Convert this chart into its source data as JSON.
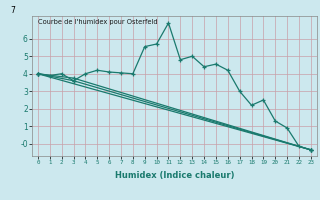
{
  "title": "Courbe de l'humidex pour Osterfeld",
  "xlabel": "Humidex (Indice chaleur)",
  "background_color": "#cce8ee",
  "grid_color": "#aaccd4",
  "line_color": "#1a7a6e",
  "xlim": [
    -0.5,
    23.5
  ],
  "ylim": [
    -0.7,
    7.3
  ],
  "yticks": [
    0,
    1,
    2,
    3,
    4,
    5,
    6
  ],
  "ytick_labels": [
    "-0",
    "1",
    "2",
    "3",
    "4",
    "5",
    "6"
  ],
  "xticks": [
    0,
    1,
    2,
    3,
    4,
    5,
    6,
    7,
    8,
    9,
    10,
    11,
    12,
    13,
    14,
    15,
    16,
    17,
    18,
    19,
    20,
    21,
    22,
    23
  ],
  "line1_x": [
    0,
    1,
    2,
    3,
    4,
    5,
    6,
    7,
    8,
    9,
    10,
    11,
    12,
    13,
    14,
    15,
    16,
    17,
    18,
    19,
    20,
    21,
    22,
    23
  ],
  "line1_y": [
    4.0,
    3.9,
    4.0,
    3.6,
    4.0,
    4.2,
    4.1,
    4.05,
    4.0,
    5.55,
    5.7,
    6.9,
    4.8,
    5.0,
    4.4,
    4.55,
    4.2,
    3.0,
    2.2,
    2.5,
    1.3,
    0.9,
    -0.15,
    -0.35
  ],
  "line2_x": [
    0,
    23
  ],
  "line2_y": [
    4.0,
    -0.35
  ],
  "line3_x": [
    0,
    3,
    23
  ],
  "line3_y": [
    4.0,
    3.6,
    -0.35
  ],
  "line4_x": [
    0,
    3,
    23
  ],
  "line4_y": [
    4.0,
    3.75,
    -0.35
  ]
}
